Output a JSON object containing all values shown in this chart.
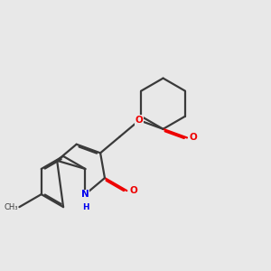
{
  "background_color": "#e8e8e8",
  "bond_color": "#3a3a3a",
  "nitrogen_color": "#0000ee",
  "oxygen_color": "#ee0000",
  "lw": 1.6,
  "dbo": 0.055,
  "fs": 7.5,
  "figsize": [
    3.0,
    3.0
  ],
  "dpi": 100,
  "xlim": [
    0,
    10
  ],
  "ylim": [
    0,
    10
  ]
}
